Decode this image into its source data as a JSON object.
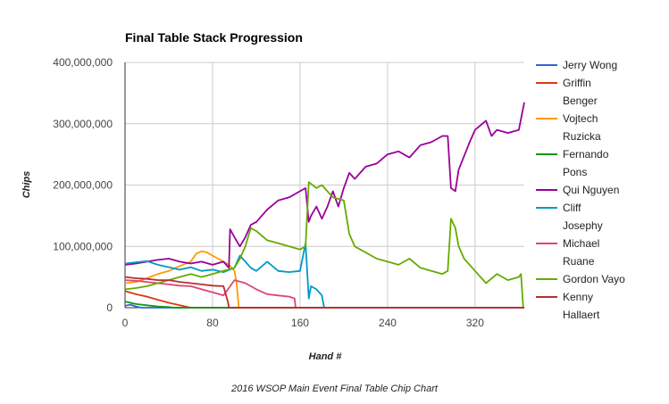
{
  "caption": "2016 WSOP Main Event Final Table Chip Chart",
  "chart_data": {
    "type": "line",
    "title": "Final Table Stack Progression",
    "xlabel": "Hand #",
    "ylabel": "Chips",
    "xlim": [
      0,
      365
    ],
    "ylim": [
      0,
      400000000
    ],
    "x_ticks": [
      0,
      80,
      160,
      240,
      320
    ],
    "y_ticks": [
      0,
      100000000,
      200000000,
      300000000,
      400000000
    ],
    "y_tick_labels": [
      "0",
      "100,000,000",
      "200,000,000",
      "300,000,000",
      "400,000,000"
    ],
    "grid": true,
    "legend": "right",
    "series": [
      {
        "name": "Jerry Wong",
        "color": "#3366cc",
        "points": [
          [
            0,
            3000000
          ],
          [
            5,
            5000000
          ],
          [
            10,
            2000000
          ],
          [
            15,
            0
          ],
          [
            365,
            0
          ]
        ]
      },
      {
        "name": "Griffin Benger",
        "color": "#dc3912",
        "points": [
          [
            0,
            27000000
          ],
          [
            10,
            22000000
          ],
          [
            20,
            18000000
          ],
          [
            30,
            13000000
          ],
          [
            40,
            8000000
          ],
          [
            50,
            4000000
          ],
          [
            55,
            2000000
          ],
          [
            60,
            0
          ],
          [
            365,
            0
          ]
        ]
      },
      {
        "name": "Vojtech Ruzicka",
        "color": "#ff9900",
        "points": [
          [
            0,
            40000000
          ],
          [
            10,
            42000000
          ],
          [
            20,
            48000000
          ],
          [
            30,
            55000000
          ],
          [
            40,
            60000000
          ],
          [
            50,
            68000000
          ],
          [
            60,
            75000000
          ],
          [
            65,
            88000000
          ],
          [
            70,
            92000000
          ],
          [
            75,
            90000000
          ],
          [
            80,
            85000000
          ],
          [
            85,
            80000000
          ],
          [
            90,
            75000000
          ],
          [
            95,
            70000000
          ],
          [
            100,
            60000000
          ],
          [
            102,
            40000000
          ],
          [
            104,
            0
          ],
          [
            365,
            0
          ]
        ]
      },
      {
        "name": "Fernando Pons",
        "color": "#109618",
        "points": [
          [
            0,
            10000000
          ],
          [
            5,
            8000000
          ],
          [
            10,
            6000000
          ],
          [
            20,
            4000000
          ],
          [
            30,
            2000000
          ],
          [
            40,
            1000000
          ],
          [
            45,
            0
          ],
          [
            365,
            0
          ]
        ]
      },
      {
        "name": "Qui Nguyen",
        "color": "#990099",
        "points": [
          [
            0,
            70000000
          ],
          [
            10,
            72000000
          ],
          [
            20,
            75000000
          ],
          [
            30,
            78000000
          ],
          [
            40,
            80000000
          ],
          [
            50,
            75000000
          ],
          [
            60,
            72000000
          ],
          [
            70,
            75000000
          ],
          [
            80,
            70000000
          ],
          [
            90,
            75000000
          ],
          [
            95,
            65000000
          ],
          [
            96,
            128000000
          ],
          [
            100,
            115000000
          ],
          [
            105,
            100000000
          ],
          [
            110,
            115000000
          ],
          [
            115,
            135000000
          ],
          [
            120,
            140000000
          ],
          [
            130,
            160000000
          ],
          [
            140,
            175000000
          ],
          [
            150,
            180000000
          ],
          [
            160,
            190000000
          ],
          [
            165,
            195000000
          ],
          [
            168,
            140000000
          ],
          [
            170,
            150000000
          ],
          [
            175,
            165000000
          ],
          [
            180,
            145000000
          ],
          [
            185,
            165000000
          ],
          [
            190,
            190000000
          ],
          [
            195,
            165000000
          ],
          [
            200,
            195000000
          ],
          [
            205,
            220000000
          ],
          [
            210,
            210000000
          ],
          [
            220,
            230000000
          ],
          [
            230,
            235000000
          ],
          [
            240,
            250000000
          ],
          [
            250,
            255000000
          ],
          [
            260,
            245000000
          ],
          [
            270,
            265000000
          ],
          [
            280,
            270000000
          ],
          [
            290,
            280000000
          ],
          [
            295,
            280000000
          ],
          [
            298,
            195000000
          ],
          [
            302,
            190000000
          ],
          [
            305,
            225000000
          ],
          [
            315,
            270000000
          ],
          [
            320,
            290000000
          ],
          [
            330,
            305000000
          ],
          [
            335,
            280000000
          ],
          [
            340,
            290000000
          ],
          [
            350,
            285000000
          ],
          [
            360,
            290000000
          ],
          [
            365,
            335000000
          ]
        ]
      },
      {
        "name": "Cliff Josephy",
        "color": "#0099c6",
        "points": [
          [
            0,
            72000000
          ],
          [
            10,
            74000000
          ],
          [
            20,
            76000000
          ],
          [
            30,
            70000000
          ],
          [
            40,
            66000000
          ],
          [
            50,
            62000000
          ],
          [
            60,
            66000000
          ],
          [
            70,
            60000000
          ],
          [
            80,
            62000000
          ],
          [
            90,
            58000000
          ],
          [
            100,
            65000000
          ],
          [
            105,
            85000000
          ],
          [
            110,
            75000000
          ],
          [
            115,
            65000000
          ],
          [
            120,
            60000000
          ],
          [
            130,
            75000000
          ],
          [
            140,
            60000000
          ],
          [
            150,
            58000000
          ],
          [
            160,
            60000000
          ],
          [
            165,
            105000000
          ],
          [
            168,
            15000000
          ],
          [
            170,
            35000000
          ],
          [
            175,
            30000000
          ],
          [
            180,
            20000000
          ],
          [
            182,
            0
          ],
          [
            365,
            0
          ]
        ]
      },
      {
        "name": "Michael Ruane",
        "color": "#dd4477",
        "points": [
          [
            0,
            45000000
          ],
          [
            10,
            44000000
          ],
          [
            20,
            42000000
          ],
          [
            30,
            40000000
          ],
          [
            40,
            38000000
          ],
          [
            50,
            36000000
          ],
          [
            60,
            35000000
          ],
          [
            70,
            30000000
          ],
          [
            80,
            25000000
          ],
          [
            90,
            20000000
          ],
          [
            100,
            45000000
          ],
          [
            110,
            40000000
          ],
          [
            120,
            30000000
          ],
          [
            130,
            22000000
          ],
          [
            140,
            20000000
          ],
          [
            150,
            18000000
          ],
          [
            155,
            15000000
          ],
          [
            156,
            0
          ],
          [
            365,
            0
          ]
        ]
      },
      {
        "name": "Gordon Vayo",
        "color": "#66aa00",
        "points": [
          [
            0,
            30000000
          ],
          [
            10,
            32000000
          ],
          [
            20,
            35000000
          ],
          [
            30,
            40000000
          ],
          [
            40,
            45000000
          ],
          [
            50,
            50000000
          ],
          [
            60,
            55000000
          ],
          [
            70,
            50000000
          ],
          [
            80,
            55000000
          ],
          [
            90,
            60000000
          ],
          [
            100,
            65000000
          ],
          [
            105,
            80000000
          ],
          [
            110,
            100000000
          ],
          [
            115,
            130000000
          ],
          [
            120,
            125000000
          ],
          [
            130,
            110000000
          ],
          [
            140,
            105000000
          ],
          [
            150,
            100000000
          ],
          [
            160,
            95000000
          ],
          [
            165,
            100000000
          ],
          [
            168,
            205000000
          ],
          [
            175,
            195000000
          ],
          [
            180,
            200000000
          ],
          [
            190,
            180000000
          ],
          [
            200,
            175000000
          ],
          [
            205,
            120000000
          ],
          [
            210,
            100000000
          ],
          [
            220,
            90000000
          ],
          [
            230,
            80000000
          ],
          [
            240,
            75000000
          ],
          [
            250,
            70000000
          ],
          [
            260,
            80000000
          ],
          [
            270,
            65000000
          ],
          [
            280,
            60000000
          ],
          [
            290,
            55000000
          ],
          [
            295,
            60000000
          ],
          [
            298,
            145000000
          ],
          [
            302,
            130000000
          ],
          [
            305,
            100000000
          ],
          [
            310,
            80000000
          ],
          [
            320,
            60000000
          ],
          [
            330,
            40000000
          ],
          [
            340,
            55000000
          ],
          [
            350,
            45000000
          ],
          [
            360,
            50000000
          ],
          [
            362,
            55000000
          ],
          [
            364,
            0
          ]
        ]
      },
      {
        "name": "Kenny Hallaert",
        "color": "#b82e2e",
        "points": [
          [
            0,
            50000000
          ],
          [
            10,
            48000000
          ],
          [
            20,
            47000000
          ],
          [
            30,
            45000000
          ],
          [
            40,
            45000000
          ],
          [
            50,
            42000000
          ],
          [
            60,
            40000000
          ],
          [
            70,
            38000000
          ],
          [
            80,
            36000000
          ],
          [
            90,
            35000000
          ],
          [
            94,
            10000000
          ],
          [
            95,
            0
          ],
          [
            365,
            0
          ]
        ]
      }
    ]
  }
}
